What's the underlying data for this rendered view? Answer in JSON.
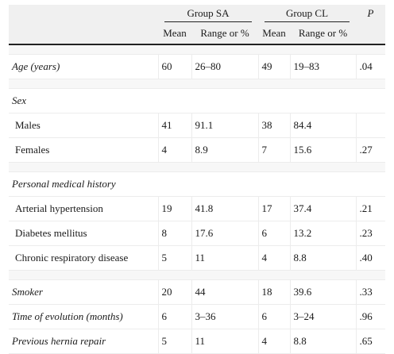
{
  "header": {
    "group_sa": "Group SA",
    "group_cl": "Group CL",
    "p": "P",
    "mean": "Mean",
    "range": "Range or %"
  },
  "rows": [
    {
      "label": "Age (years)",
      "italic": true,
      "sa_mean": "60",
      "sa_range": "26–80",
      "cl_mean": "49",
      "cl_range": "19–83",
      "p": ".04"
    },
    {
      "label": "Sex",
      "italic": true,
      "section": true
    },
    {
      "label": "Males",
      "sa_mean": "41",
      "sa_range": "91.1",
      "cl_mean": "38",
      "cl_range": "84.4",
      "p": ""
    },
    {
      "label": "Females",
      "sa_mean": "4",
      "sa_range": "8.9",
      "cl_mean": "7",
      "cl_range": "15.6",
      "p": ".27"
    },
    {
      "label": "Personal medical history",
      "italic": true,
      "section": true
    },
    {
      "label": "Arterial hypertension",
      "sa_mean": "19",
      "sa_range": "41.8",
      "cl_mean": "17",
      "cl_range": "37.4",
      "p": ".21"
    },
    {
      "label": "Diabetes mellitus",
      "sa_mean": "8",
      "sa_range": "17.6",
      "cl_mean": "6",
      "cl_range": "13.2",
      "p": ".23"
    },
    {
      "label": "Chronic respiratory disease",
      "sa_mean": "5",
      "sa_range": "11",
      "cl_mean": "4",
      "cl_range": "8.8",
      "p": ".40"
    },
    {
      "label": "Smoker",
      "italic": true,
      "sa_mean": "20",
      "sa_range": "44",
      "cl_mean": "18",
      "cl_range": "39.6",
      "p": ".33"
    },
    {
      "label": "Time of evolution (months)",
      "italic": true,
      "sa_mean": "6",
      "sa_range": "3–36",
      "cl_mean": "6",
      "cl_range": "3–24",
      "p": ".96"
    },
    {
      "label": "Previous hernia repair",
      "italic": true,
      "sa_mean": "5",
      "sa_range": "11",
      "cl_mean": "4",
      "cl_range": "8.8",
      "p": ".65"
    }
  ]
}
